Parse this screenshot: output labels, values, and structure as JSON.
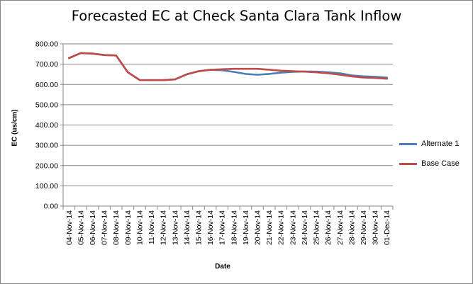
{
  "chart_data": {
    "type": "line",
    "title": "Forecasted EC at Check Santa Clara Tank Inflow",
    "xlabel": "Date",
    "ylabel": "EC (us/cm)",
    "ylim": [
      0,
      800
    ],
    "y_ticks": [
      "0.00",
      "100.00",
      "200.00",
      "300.00",
      "400.00",
      "500.00",
      "600.00",
      "700.00",
      "800.00"
    ],
    "grid": true,
    "legend_position": "right",
    "categories": [
      "04-Nov-14",
      "05-Nov-14",
      "06-Nov-14",
      "07-Nov-14",
      "08-Nov-14",
      "09-Nov-14",
      "10-Nov-14",
      "11-Nov-14",
      "12-Nov-14",
      "13-Nov-14",
      "14-Nov-14",
      "15-Nov-14",
      "16-Nov-14",
      "17-Nov-14",
      "18-Nov-14",
      "19-Nov-14",
      "20-Nov-14",
      "21-Nov-14",
      "22-Nov-14",
      "23-Nov-14",
      "24-Nov-14",
      "25-Nov-14",
      "26-Nov-14",
      "27-Nov-14",
      "28-Nov-14",
      "29-Nov-14",
      "30-Nov-14",
      "01-Dec-14"
    ],
    "series": [
      {
        "name": "Alternate 1",
        "color": "#4A7EBB",
        "values": [
          730,
          755,
          752,
          745,
          743,
          660,
          622,
          621,
          621,
          625,
          650,
          665,
          672,
          670,
          662,
          652,
          648,
          652,
          658,
          662,
          664,
          663,
          660,
          655,
          645,
          640,
          638,
          634
        ]
      },
      {
        "name": "Base Case",
        "color": "#BE4B48",
        "values": [
          730,
          755,
          752,
          745,
          743,
          660,
          622,
          621,
          621,
          625,
          650,
          665,
          672,
          675,
          677,
          677,
          677,
          673,
          668,
          665,
          663,
          660,
          655,
          648,
          640,
          634,
          632,
          628
        ]
      }
    ]
  }
}
